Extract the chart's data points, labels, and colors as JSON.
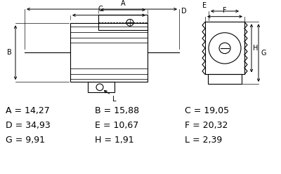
{
  "bg_color": "#ffffff",
  "line_color": "#000000",
  "labels_row1": [
    "A = 14,27",
    "B = 15,88",
    "C = 19,05"
  ],
  "labels_row2": [
    "D = 34,93",
    "E = 10,67",
    "F = 20,32"
  ],
  "labels_row3": [
    "G = 9,91",
    "H = 1,91",
    "L = 2,39"
  ],
  "text_fontsize": 9.0,
  "figure_width": 4.0,
  "figure_height": 2.49
}
